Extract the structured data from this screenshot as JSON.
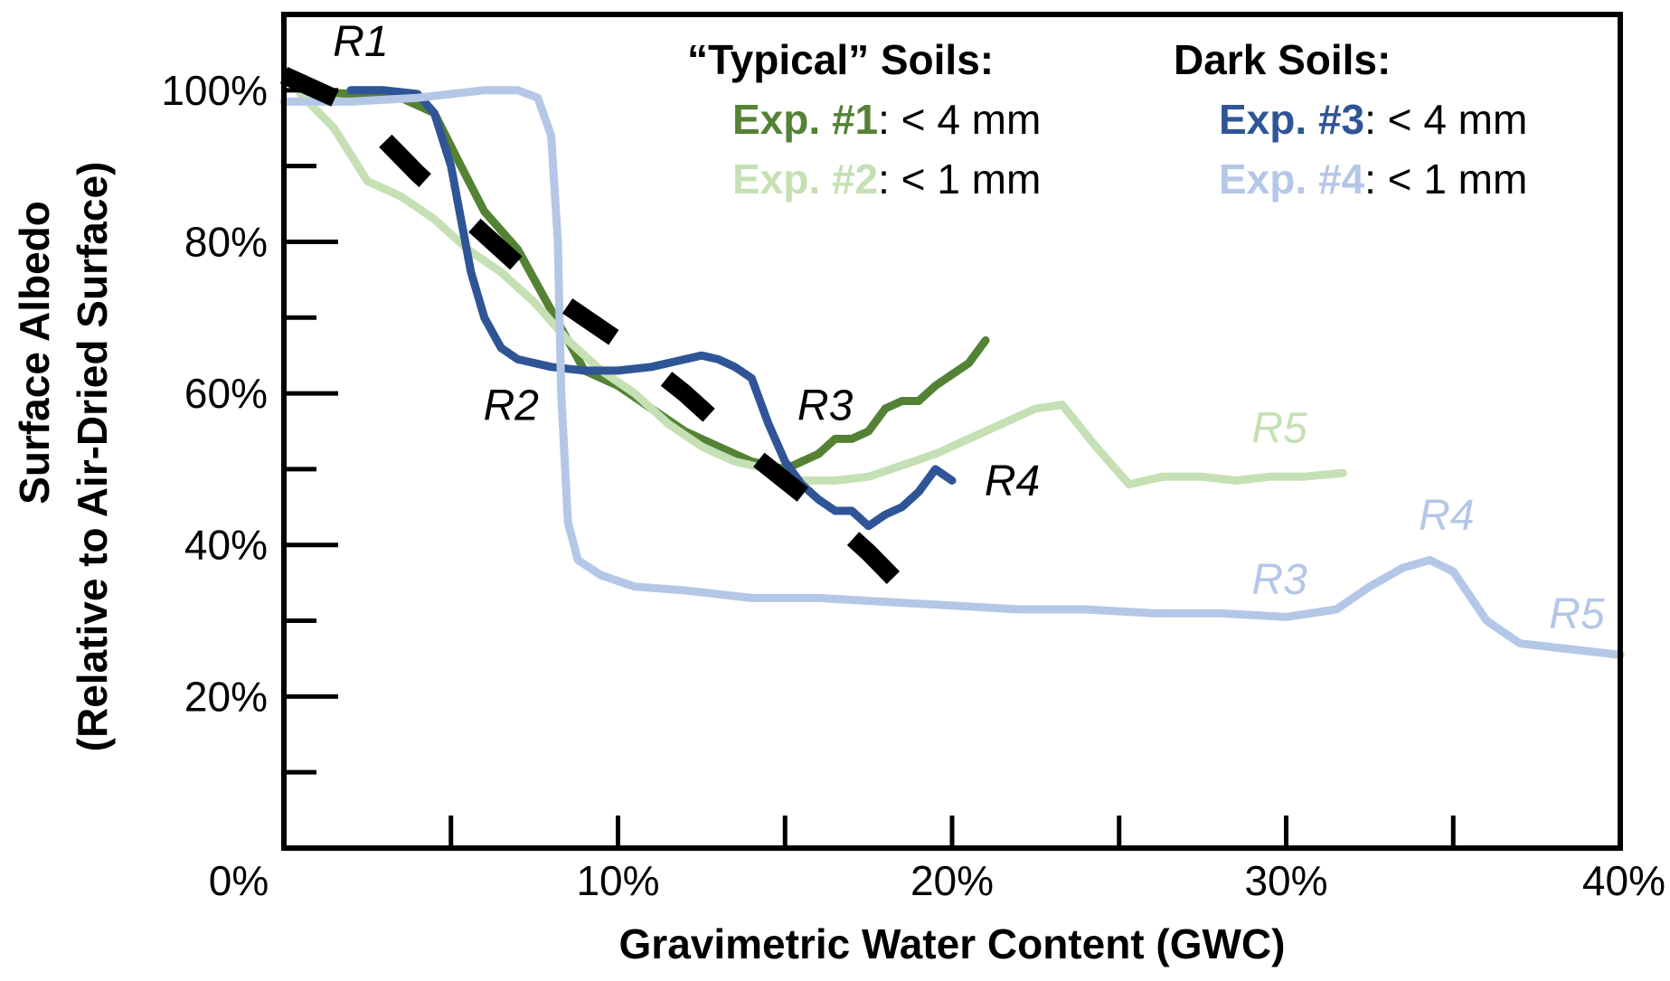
{
  "chart_data": {
    "type": "line",
    "xlabel": "Gravimetric Water Content (GWC)",
    "ylabel": "Surface Albedo",
    "ylabel2": "(Relative to Air-Dried Surface)",
    "xlim": [
      0,
      40
    ],
    "ylim": [
      0,
      110
    ],
    "x_ticks": [
      "0%",
      "10%",
      "20%",
      "30%",
      "40%"
    ],
    "y_ticks": [
      "20%",
      "40%",
      "60%",
      "80%",
      "100%"
    ],
    "legend": {
      "typical_header": "“Typical” Soils:",
      "dark_header": "Dark Soils:",
      "entries": [
        {
          "exp": "Exp.",
          "num": "#1",
          "desc": ": < 4 mm",
          "color": "#548235"
        },
        {
          "exp": "Exp.",
          "num": "#2",
          "desc": ": < 1 mm",
          "color": "#c5e0b4"
        },
        {
          "exp": "Exp.",
          "num": "#3",
          "desc": ": < 4 mm",
          "color": "#2f5597"
        },
        {
          "exp": "Exp.",
          "num": "#4",
          "desc": ": < 1 mm",
          "color": "#b4c7e7"
        }
      ]
    },
    "series": [
      {
        "name": "Exp. #1: < 4 mm",
        "color": "#548235",
        "x": [
          0.5,
          2,
          3.5,
          4.5,
          5.3,
          6,
          7,
          8,
          9,
          10,
          11,
          12,
          13,
          14,
          15,
          15.5,
          16,
          16.5,
          17,
          17.5,
          18,
          18.5,
          19,
          19.5,
          20,
          20.5,
          21
        ],
        "y": [
          100,
          99.5,
          99,
          97,
          90,
          84,
          79,
          71,
          63,
          61,
          58,
          55,
          53,
          51,
          50,
          51,
          52,
          54,
          54,
          55,
          58,
          59,
          59,
          61,
          62.5,
          64,
          67
        ]
      },
      {
        "name": "Exp. #2: < 1 mm",
        "color": "#c5e0b4",
        "x": [
          0.5,
          1.5,
          2.5,
          3.5,
          4.5,
          5.5,
          6.5,
          7.5,
          8.5,
          9.5,
          10.5,
          11.5,
          12.5,
          13.5,
          14.5,
          15.5,
          16.5,
          17.5,
          18.5,
          19.5,
          20.5,
          21.5,
          22.5,
          23.3,
          24.3,
          25.3,
          26.3,
          27.5,
          28.5,
          29.5,
          30.5,
          31.7
        ],
        "y": [
          99.5,
          95,
          88,
          86,
          83,
          79,
          76,
          72,
          67,
          63,
          60,
          56,
          53,
          51,
          50,
          48.5,
          48.5,
          49,
          50.5,
          52,
          54,
          56,
          58,
          58.5,
          53,
          48,
          49,
          49,
          48.5,
          49,
          49,
          49.5
        ]
      },
      {
        "name": "Exp. #3: < 4 mm",
        "color": "#2f5597",
        "x": [
          2,
          3,
          4,
          4.5,
          5,
          5.3,
          5.6,
          6,
          6.5,
          7,
          8,
          9,
          10,
          11,
          12,
          12.5,
          13,
          13.5,
          14,
          14.5,
          15,
          15.5,
          16,
          16.5,
          17,
          17.5,
          18,
          18.5,
          19,
          19.5,
          20
        ],
        "y": [
          100,
          100,
          99.5,
          97,
          90,
          83,
          76,
          70,
          66,
          64.5,
          63.5,
          63,
          63,
          63.5,
          64.5,
          65,
          64.5,
          63.5,
          62,
          56,
          51,
          48,
          46,
          44.5,
          44.5,
          42.5,
          44,
          45,
          47,
          50,
          48.5
        ]
      },
      {
        "name": "Exp. #4: < 1 mm",
        "color": "#b4c7e7",
        "x": [
          0,
          2,
          4,
          6,
          7,
          7.6,
          8,
          8.2,
          8.3,
          8.5,
          8.8,
          9.5,
          10.5,
          12,
          14,
          16,
          18,
          20,
          22,
          24,
          26,
          28,
          30,
          31.5,
          32.5,
          33.5,
          34.3,
          35,
          36,
          37,
          38,
          39,
          40
        ],
        "y": [
          98.5,
          98.5,
          99,
          100,
          100,
          99,
          94,
          80,
          60,
          43,
          38,
          36,
          34.5,
          34,
          33,
          33,
          32.5,
          32,
          31.5,
          31.5,
          31,
          31,
          30.5,
          31.5,
          34.5,
          37,
          38,
          36.5,
          30,
          27,
          26.5,
          26,
          25.5
        ]
      },
      {
        "name": "",
        "color": "#000000",
        "dashed": true,
        "x": [
          0,
          2,
          4,
          6,
          8,
          10,
          12,
          14,
          16,
          17.5,
          19.5
        ],
        "y": [
          102,
          98,
          89,
          81,
          73,
          67,
          60,
          52,
          45,
          39,
          30
        ]
      }
    ],
    "region_labels": [
      {
        "text": "R1",
        "x": 2.3,
        "y": 104.5,
        "color": "#000000"
      },
      {
        "text": "R2",
        "x": 6.8,
        "y": 56.5,
        "color": "#000000"
      },
      {
        "text": "R3",
        "x": 16.2,
        "y": 56.5,
        "color": "#000000"
      },
      {
        "text": "R4",
        "x": 21.8,
        "y": 46.5,
        "color": "#000000"
      },
      {
        "text": "R5",
        "x": 29.8,
        "y": 53.5,
        "color": "#c5e0b4"
      },
      {
        "text": "R3",
        "x": 29.8,
        "y": 33.5,
        "color": "#b4c7e7"
      },
      {
        "text": "R4",
        "x": 34.8,
        "y": 42,
        "color": "#b4c7e7"
      },
      {
        "text": "R5",
        "x": 38.7,
        "y": 29,
        "color": "#b4c7e7"
      }
    ]
  }
}
